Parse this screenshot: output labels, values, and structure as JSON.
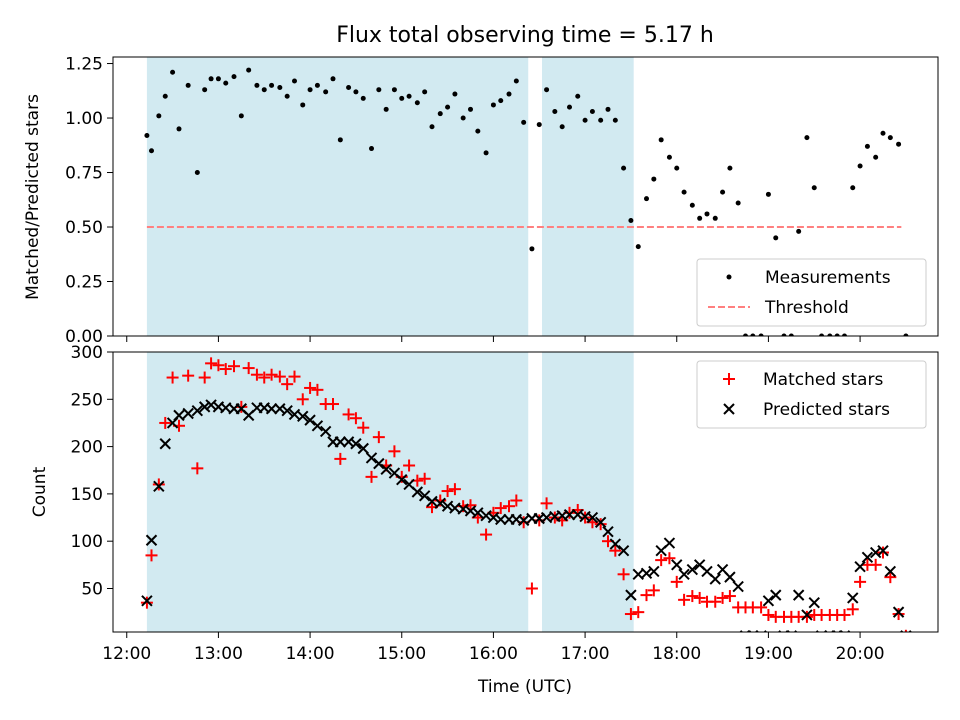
{
  "figure": {
    "title": "Flux total observing time = 5.17 h",
    "xlabel": "Time (UTC)",
    "xticks": [
      "12:00",
      "13:00",
      "14:00",
      "15:00",
      "16:00",
      "17:00",
      "18:00",
      "19:00",
      "20:00"
    ],
    "shade_color": "#add8e6",
    "colors": {
      "measurements": "#000000",
      "threshold": "#ff8080",
      "matched": "#ff0000",
      "predicted": "#000000"
    }
  },
  "chart_data": [
    {
      "type": "scatter",
      "panel": "top",
      "ylabel": "Matched/Predicted stars",
      "ylim": [
        0,
        1.28
      ],
      "yticks": [
        "0.00",
        "0.25",
        "0.50",
        "0.75",
        "1.00",
        "1.25"
      ],
      "xlim": [
        11.85,
        20.85
      ],
      "shaded_intervals": [
        [
          12.22,
          16.38
        ],
        [
          16.53,
          17.53
        ]
      ],
      "legend_position": "lower-right",
      "threshold": {
        "name": "Threshold",
        "y": 0.5,
        "x": [
          12.22,
          20.45
        ]
      },
      "series": [
        {
          "name": "Measurements",
          "x": [
            12.22,
            12.27,
            12.35,
            12.42,
            12.5,
            12.57,
            12.67,
            12.77,
            12.85,
            12.92,
            13.0,
            13.08,
            13.17,
            13.25,
            13.33,
            13.42,
            13.5,
            13.58,
            13.67,
            13.75,
            13.83,
            13.92,
            14.0,
            14.08,
            14.17,
            14.25,
            14.33,
            14.42,
            14.5,
            14.58,
            14.67,
            14.75,
            14.83,
            14.92,
            15.0,
            15.08,
            15.17,
            15.25,
            15.33,
            15.42,
            15.5,
            15.58,
            15.67,
            15.75,
            15.83,
            15.92,
            16.0,
            16.08,
            16.17,
            16.25,
            16.33,
            16.42,
            16.5,
            16.58,
            16.67,
            16.75,
            16.83,
            16.92,
            17.0,
            17.08,
            17.17,
            17.25,
            17.33,
            17.42,
            17.5,
            17.58,
            17.67,
            17.75,
            17.83,
            17.92,
            18.0,
            18.08,
            18.17,
            18.25,
            18.33,
            18.42,
            18.5,
            18.58,
            18.67,
            18.75,
            18.83,
            18.92,
            19.0,
            19.08,
            19.17,
            19.25,
            19.33,
            19.42,
            19.5,
            19.58,
            19.67,
            19.75,
            19.83,
            19.92,
            20.0,
            20.08,
            20.17,
            20.25,
            20.33,
            20.42,
            20.5
          ],
          "y": [
            0.92,
            0.85,
            1.01,
            1.1,
            1.21,
            0.95,
            1.15,
            0.75,
            1.13,
            1.18,
            1.18,
            1.16,
            1.19,
            1.01,
            1.22,
            1.15,
            1.13,
            1.15,
            1.14,
            1.1,
            1.17,
            1.06,
            1.13,
            1.15,
            1.12,
            1.18,
            0.9,
            1.14,
            1.12,
            1.09,
            0.86,
            1.13,
            1.04,
            1.13,
            1.09,
            1.1,
            1.07,
            1.12,
            0.96,
            1.02,
            1.05,
            1.11,
            1.0,
            1.04,
            0.94,
            0.84,
            1.06,
            1.08,
            1.11,
            1.17,
            0.98,
            0.4,
            0.97,
            1.13,
            1.03,
            0.96,
            1.05,
            1.1,
            0.99,
            1.03,
            0.99,
            1.04,
            0.99,
            0.77,
            0.53,
            0.41,
            0.63,
            0.72,
            0.9,
            0.82,
            0.77,
            0.66,
            0.6,
            0.54,
            0.56,
            0.54,
            0.66,
            0.77,
            0.61,
            0.0,
            0.0,
            0.0,
            0.65,
            0.45,
            0.0,
            0.0,
            0.48,
            0.91,
            0.68,
            0.0,
            0.0,
            0.0,
            0.0,
            0.68,
            0.78,
            0.87,
            0.82,
            0.93,
            0.91,
            0.88,
            0.0
          ]
        }
      ]
    },
    {
      "type": "scatter",
      "panel": "bottom",
      "ylabel": "Count",
      "ylim": [
        4,
        300
      ],
      "yticks": [
        "50",
        "100",
        "150",
        "200",
        "250",
        "300"
      ],
      "xlim": [
        11.85,
        20.85
      ],
      "shaded_intervals": [
        [
          12.22,
          16.38
        ],
        [
          16.53,
          17.53
        ]
      ],
      "legend_position": "upper-right",
      "x": [
        12.22,
        12.27,
        12.35,
        12.42,
        12.5,
        12.57,
        12.67,
        12.77,
        12.85,
        12.92,
        13.0,
        13.08,
        13.17,
        13.25,
        13.33,
        13.42,
        13.5,
        13.58,
        13.67,
        13.75,
        13.83,
        13.92,
        14.0,
        14.08,
        14.17,
        14.25,
        14.33,
        14.42,
        14.5,
        14.58,
        14.67,
        14.75,
        14.83,
        14.92,
        15.0,
        15.08,
        15.17,
        15.25,
        15.33,
        15.42,
        15.5,
        15.58,
        15.67,
        15.75,
        15.83,
        15.92,
        16.0,
        16.08,
        16.17,
        16.25,
        16.33,
        16.42,
        16.5,
        16.58,
        16.67,
        16.75,
        16.83,
        16.92,
        17.0,
        17.08,
        17.17,
        17.25,
        17.33,
        17.42,
        17.5,
        17.58,
        17.67,
        17.75,
        17.83,
        17.92,
        18.0,
        18.08,
        18.17,
        18.25,
        18.33,
        18.42,
        18.5,
        18.58,
        18.67,
        18.75,
        18.83,
        18.92,
        19.0,
        19.08,
        19.17,
        19.25,
        19.33,
        19.42,
        19.5,
        19.58,
        19.67,
        19.75,
        19.83,
        19.92,
        20.0,
        20.08,
        20.17,
        20.25,
        20.33,
        20.42,
        20.5
      ],
      "series": [
        {
          "name": "Matched stars",
          "marker": "plus",
          "y": [
            35,
            85,
            160,
            225,
            273,
            222,
            275,
            177,
            273,
            288,
            286,
            282,
            285,
            242,
            283,
            276,
            273,
            276,
            274,
            266,
            274,
            250,
            262,
            260,
            245,
            245,
            187,
            234,
            230,
            220,
            168,
            210,
            180,
            195,
            168,
            180,
            164,
            166,
            136,
            143,
            153,
            155,
            137,
            138,
            125,
            107,
            130,
            135,
            137,
            143,
            120,
            50,
            122,
            140,
            125,
            122,
            130,
            133,
            125,
            120,
            118,
            100,
            90,
            65,
            23,
            25,
            43,
            48,
            80,
            82,
            57,
            38,
            42,
            40,
            36,
            36,
            40,
            42,
            30,
            30,
            30,
            30,
            22,
            20,
            20,
            20,
            20,
            20,
            22,
            22,
            22,
            22,
            22,
            28,
            57,
            75,
            75,
            88,
            62,
            23,
            0
          ]
        },
        {
          "name": "Predicted stars",
          "marker": "x",
          "y": [
            37,
            101,
            158,
            203,
            225,
            233,
            235,
            238,
            242,
            244,
            242,
            241,
            240,
            240,
            233,
            241,
            241,
            240,
            240,
            238,
            234,
            232,
            228,
            222,
            216,
            205,
            205,
            205,
            203,
            198,
            188,
            182,
            176,
            172,
            165,
            160,
            152,
            148,
            142,
            140,
            137,
            135,
            134,
            132,
            130,
            127,
            125,
            123,
            123,
            123,
            122,
            124,
            124,
            125,
            126,
            127,
            128,
            128,
            126,
            125,
            120,
            110,
            97,
            90,
            43,
            65,
            66,
            68,
            90,
            98,
            75,
            65,
            70,
            75,
            68,
            60,
            70,
            62,
            52,
            0,
            0,
            0,
            37,
            43,
            0,
            0,
            43,
            22,
            35,
            0,
            0,
            0,
            0,
            40,
            73,
            83,
            88,
            90,
            68,
            25,
            0
          ]
        }
      ]
    }
  ]
}
